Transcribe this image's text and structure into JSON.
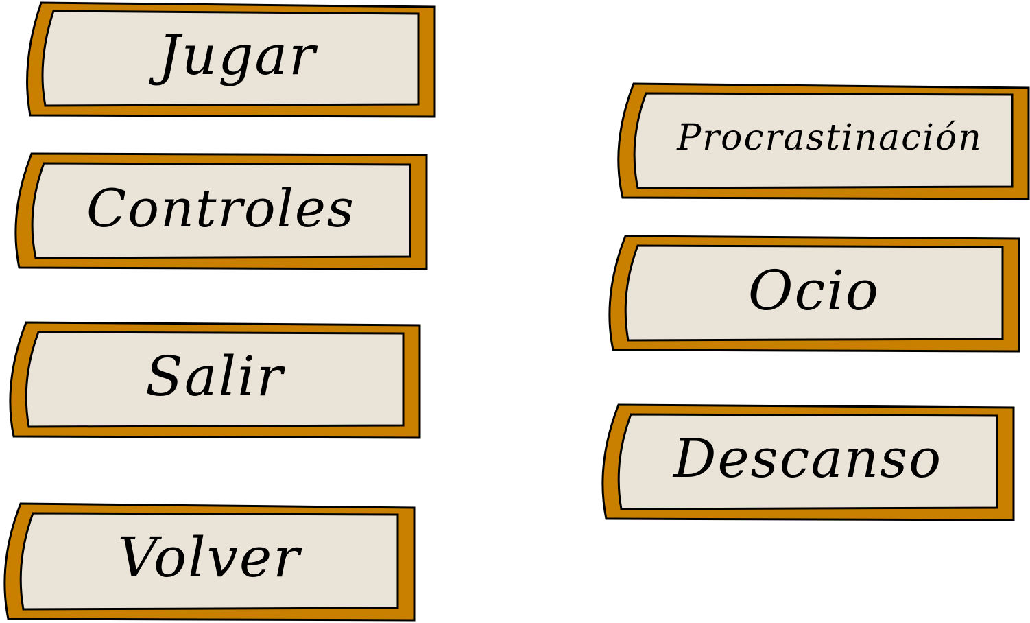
{
  "colors": {
    "frame_outer": "#C98000",
    "frame_inner": "#EAE3D8",
    "outline": "#000000",
    "text": "#000000",
    "background": "#FFFFFF"
  },
  "main_menu": {
    "buttons": [
      {
        "label": "Jugar"
      },
      {
        "label": "Controles"
      },
      {
        "label": "Salir"
      },
      {
        "label": "Volver"
      }
    ]
  },
  "difficulty_menu": {
    "buttons": [
      {
        "label": "Procrastinación"
      },
      {
        "label": "Ocio"
      },
      {
        "label": "Descanso"
      }
    ]
  }
}
